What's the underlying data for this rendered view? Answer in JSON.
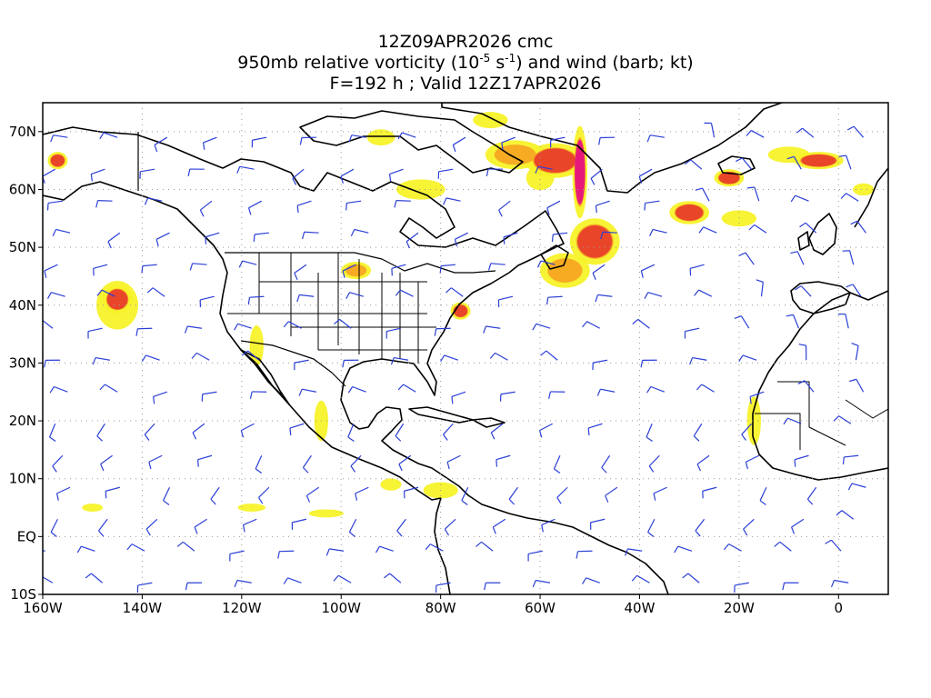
{
  "title": {
    "line1": "12Z09APR2026 cmc",
    "line2_prefix": "950mb relative vorticity (10",
    "line2_exp1": "-5",
    "line2_mid": " s",
    "line2_exp2": "-1",
    "line2_suffix": ") and wind (barb; kt)",
    "line3": "F=192 h ; Valid 12Z17APR2026"
  },
  "map": {
    "projection": "cylindrical-equidistant",
    "lon_range": [
      -160,
      10
    ],
    "lat_range": [
      -10,
      75
    ],
    "grid": "dotted",
    "colors": {
      "coastline": "#000000",
      "wind_barb": "#2b3fd6",
      "vorticity_low": "#f7f22a",
      "vorticity_mid": "#f5a623",
      "vorticity_high": "#e8402a",
      "vorticity_max": "#e6167e"
    },
    "lon_ticks": [
      {
        "value": -160,
        "label": "160W"
      },
      {
        "value": -140,
        "label": "140W"
      },
      {
        "value": -120,
        "label": "120W"
      },
      {
        "value": -100,
        "label": "100W"
      },
      {
        "value": -80,
        "label": "80W"
      },
      {
        "value": -60,
        "label": "60W"
      },
      {
        "value": -40,
        "label": "40W"
      },
      {
        "value": -20,
        "label": "20W"
      },
      {
        "value": 0,
        "label": "0"
      }
    ],
    "lat_ticks": [
      {
        "value": 70,
        "label": "70N"
      },
      {
        "value": 60,
        "label": "60N"
      },
      {
        "value": 50,
        "label": "50N"
      },
      {
        "value": 40,
        "label": "40N"
      },
      {
        "value": 30,
        "label": "30N"
      },
      {
        "value": 20,
        "label": "20N"
      },
      {
        "value": 10,
        "label": "10N"
      },
      {
        "value": 0,
        "label": "EQ"
      },
      {
        "value": -10,
        "label": "10S"
      }
    ],
    "vorticity_features": [
      {
        "lon": -52,
        "lat": 63,
        "rlon": 1.5,
        "rlat": 8,
        "level": 4
      },
      {
        "lon": -57,
        "lat": 65,
        "rlon": 6,
        "rlat": 3,
        "level": 3
      },
      {
        "lon": -65,
        "lat": 66,
        "rlon": 6,
        "rlat": 2.5,
        "level": 2
      },
      {
        "lon": -49,
        "lat": 51,
        "rlon": 5,
        "rlat": 4,
        "level": 3
      },
      {
        "lon": -55,
        "lat": 46,
        "rlon": 5,
        "rlat": 3,
        "level": 2
      },
      {
        "lon": -4,
        "lat": 65,
        "rlon": 5,
        "rlat": 1.5,
        "level": 3
      },
      {
        "lon": -22,
        "lat": 62,
        "rlon": 3,
        "rlat": 1.5,
        "level": 3
      },
      {
        "lon": -30,
        "lat": 56,
        "rlon": 4,
        "rlat": 2,
        "level": 3
      },
      {
        "lon": -145,
        "lat": 41,
        "rlon": 3,
        "rlat": 2.5,
        "level": 3
      },
      {
        "lon": -157,
        "lat": 65,
        "rlon": 2,
        "rlat": 1.5,
        "level": 3
      },
      {
        "lon": -76,
        "lat": 39,
        "rlon": 2,
        "rlat": 1.5,
        "level": 3
      },
      {
        "lon": -97,
        "lat": 46,
        "rlon": 3,
        "rlat": 1.5,
        "level": 2
      },
      {
        "lon": -84,
        "lat": 60,
        "rlon": 7,
        "rlat": 2.5,
        "level": 1
      },
      {
        "lon": -92,
        "lat": 69,
        "rlon": 4,
        "rlat": 2,
        "level": 1
      },
      {
        "lon": -70,
        "lat": 72,
        "rlon": 5,
        "rlat": 2,
        "level": 1
      },
      {
        "lon": -20,
        "lat": 55,
        "rlon": 5,
        "rlat": 2,
        "level": 1
      },
      {
        "lon": -10,
        "lat": 66,
        "rlon": 6,
        "rlat": 2,
        "level": 1
      },
      {
        "lon": -145,
        "lat": 40,
        "rlon": 6,
        "rlat": 6,
        "level": 1
      },
      {
        "lon": -117,
        "lat": 33,
        "rlon": 2,
        "rlat": 5,
        "level": 1
      },
      {
        "lon": -104,
        "lat": 20,
        "rlon": 2,
        "rlat": 5,
        "level": 1
      },
      {
        "lon": -80,
        "lat": 8,
        "rlon": 5,
        "rlat": 2,
        "level": 1
      },
      {
        "lon": -17,
        "lat": 20,
        "rlon": 2,
        "rlat": 6,
        "level": 1
      },
      {
        "lon": -118,
        "lat": 5,
        "rlon": 4,
        "rlat": 1,
        "level": 1
      },
      {
        "lon": -103,
        "lat": 4,
        "rlon": 5,
        "rlat": 1,
        "level": 1
      },
      {
        "lon": -150,
        "lat": 5,
        "rlon": 3,
        "rlat": 1,
        "level": 1
      },
      {
        "lon": -90,
        "lat": 9,
        "rlon": 3,
        "rlat": 1.5,
        "level": 1
      },
      {
        "lon": -60,
        "lat": 62,
        "rlon": 4,
        "rlat": 3,
        "level": 1
      },
      {
        "lon": 5,
        "lat": 60,
        "rlon": 3,
        "rlat": 1.5,
        "level": 1
      }
    ]
  }
}
